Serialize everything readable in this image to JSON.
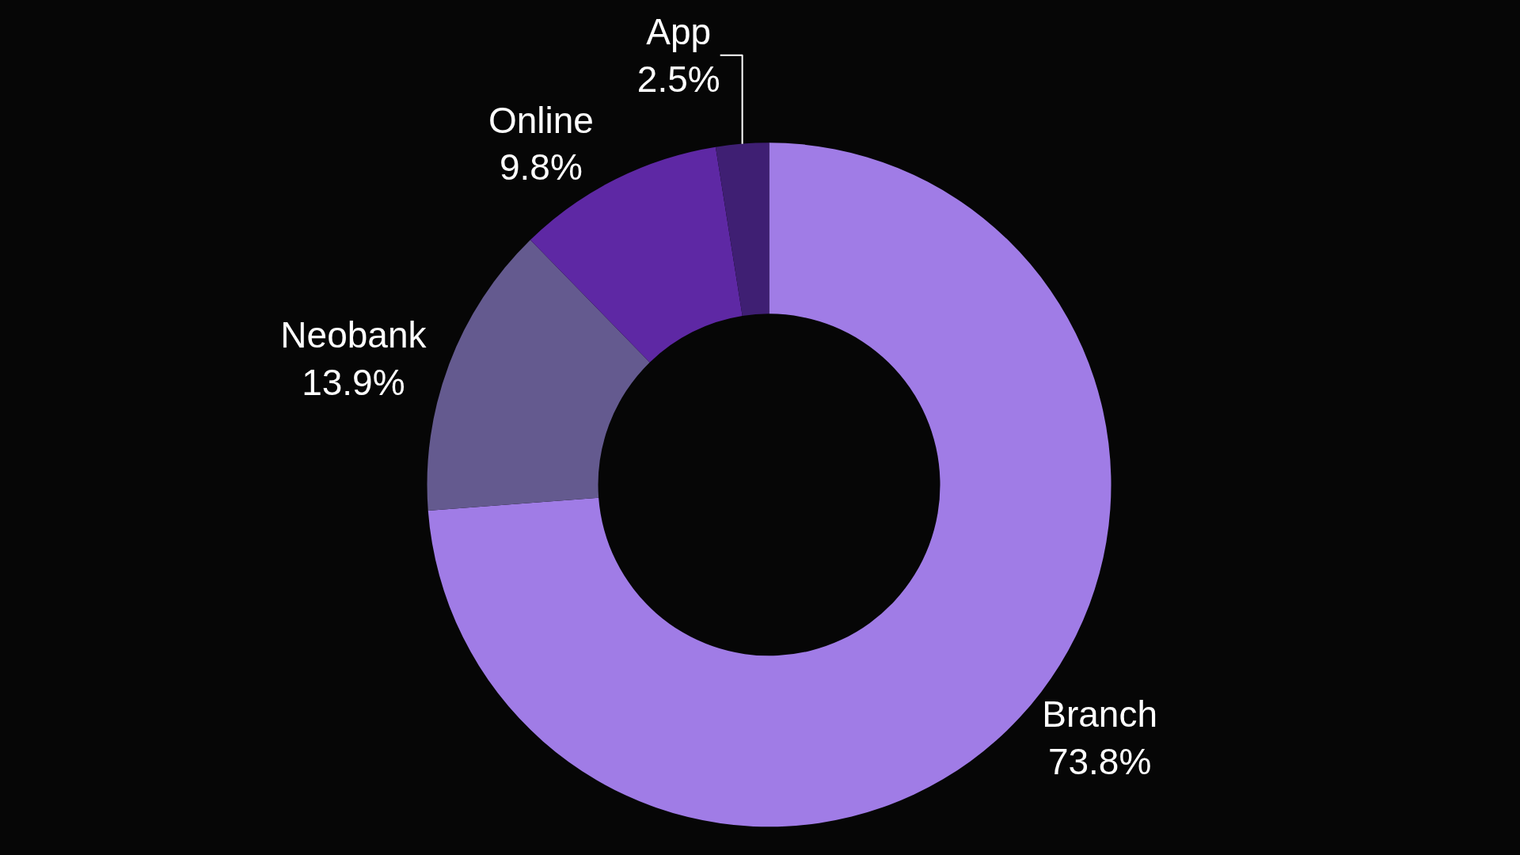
{
  "chart_data": {
    "type": "donut",
    "categories": [
      "Branch",
      "Neobank",
      "Online",
      "App"
    ],
    "values": [
      73.8,
      13.9,
      9.8,
      2.5
    ],
    "value_labels": [
      "73.8%",
      "13.9%",
      "9.8%",
      "2.5%"
    ],
    "colors": [
      "#a07ce6",
      "#645a8f",
      "#5e28a4",
      "#3f1f73"
    ],
    "legend": false
  }
}
